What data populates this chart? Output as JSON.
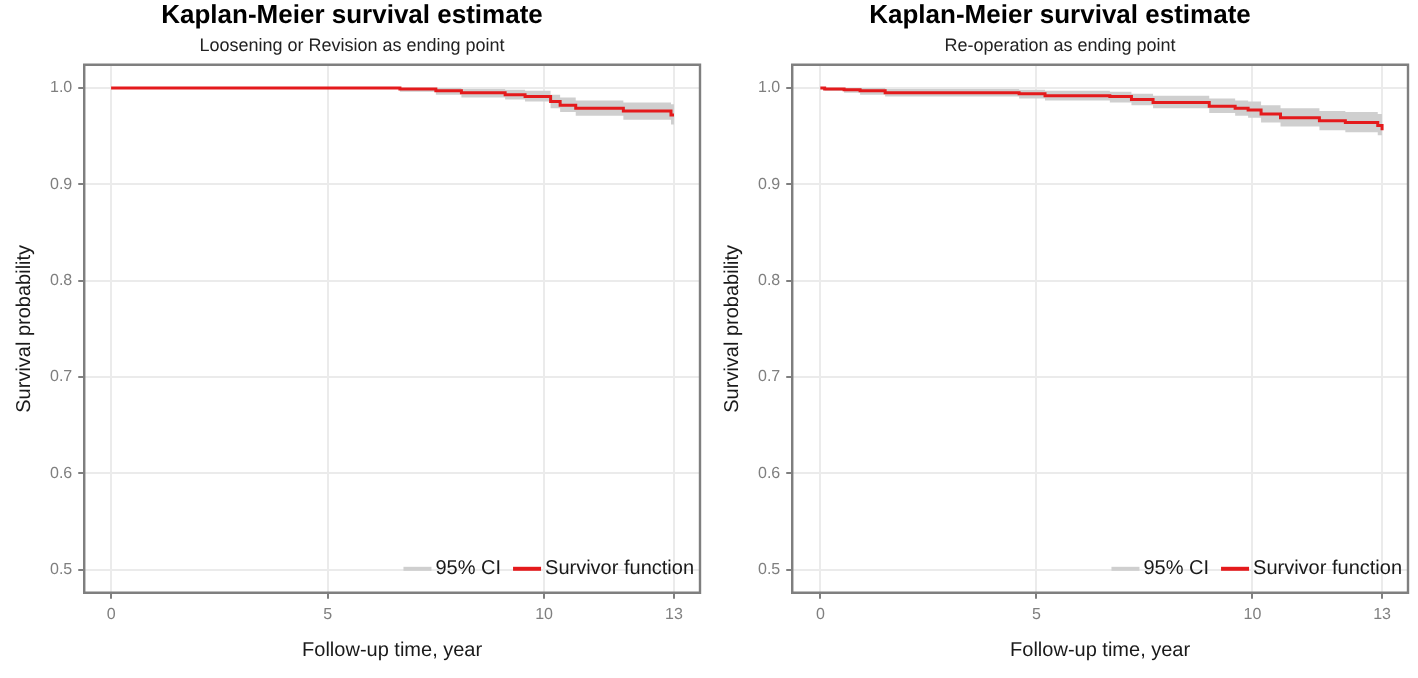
{
  "chart_data": [
    {
      "type": "step",
      "title": "Kaplan-Meier survival estimate",
      "subtitle": "Loosening or Revision as ending point",
      "xlabel": "Follow-up time, year",
      "ylabel": "Survival probability",
      "x": [
        0,
        6.67,
        7.5,
        8.09,
        9.1,
        9.56,
        10.15,
        10.37,
        10.73,
        11.83,
        12.93,
        13.0
      ],
      "series": [
        {
          "name": "Survivor function",
          "color": "#e41a1c",
          "values": [
            1.0,
            0.999,
            0.997,
            0.995,
            0.993,
            0.991,
            0.986,
            0.982,
            0.979,
            0.976,
            0.972,
            0.972
          ],
          "lower": [
            1.0,
            0.996,
            0.993,
            0.99,
            0.988,
            0.986,
            0.979,
            0.975,
            0.971,
            0.967,
            0.962,
            0.962
          ],
          "upper": [
            1.0,
            1.0,
            1.0,
            0.999,
            0.998,
            0.997,
            0.993,
            0.99,
            0.987,
            0.985,
            0.983,
            0.983
          ]
        }
      ],
      "annotations": [
        "95% CI"
      ],
      "xlim": [
        -0.62,
        13.6
      ],
      "xticks": [
        0,
        5,
        10,
        13
      ],
      "ylim": [
        0.476,
        1.024
      ],
      "yticks": [
        0.5,
        0.6,
        0.7,
        0.8,
        0.9,
        {
          "value": 1,
          "label": "1.0"
        }
      ],
      "grid": true,
      "legend": "bottom right"
    },
    {
      "type": "step",
      "title": "Kaplan-Meier survival estimate",
      "subtitle": "Re-operation as ending point",
      "xlabel": "Follow-up time, year",
      "ylabel": "Survival probability",
      "x": [
        0,
        0.1,
        0.55,
        0.92,
        1.5,
        4.6,
        5.2,
        6.7,
        7.2,
        7.7,
        9.0,
        9.6,
        9.9,
        10.2,
        10.65,
        11.55,
        12.15,
        12.9,
        13.0
      ],
      "series": [
        {
          "name": "Survivor function",
          "color": "#e41a1c",
          "values": [
            1.0,
            0.999,
            0.998,
            0.997,
            0.995,
            0.994,
            0.992,
            0.991,
            0.988,
            0.985,
            0.981,
            0.979,
            0.977,
            0.973,
            0.969,
            0.966,
            0.964,
            0.961,
            0.956
          ],
          "lower": [
            1.0,
            0.997,
            0.995,
            0.993,
            0.991,
            0.989,
            0.987,
            0.985,
            0.982,
            0.979,
            0.974,
            0.971,
            0.969,
            0.964,
            0.96,
            0.956,
            0.954,
            0.951,
            0.946
          ],
          "upper": [
            1.0,
            1.0,
            1.0,
            1.0,
            0.999,
            0.998,
            0.997,
            0.996,
            0.994,
            0.992,
            0.989,
            0.987,
            0.986,
            0.982,
            0.979,
            0.976,
            0.975,
            0.973,
            0.968
          ]
        }
      ],
      "annotations": [
        "95% CI"
      ],
      "xlim": [
        -0.65,
        13.6
      ],
      "xticks": [
        0,
        5,
        10,
        13
      ],
      "ylim": [
        0.476,
        1.024
      ],
      "yticks": [
        0.5,
        0.6,
        0.7,
        0.8,
        0.9,
        {
          "value": 1,
          "label": "1.0"
        }
      ],
      "grid": true,
      "legend": "bottom right"
    }
  ]
}
